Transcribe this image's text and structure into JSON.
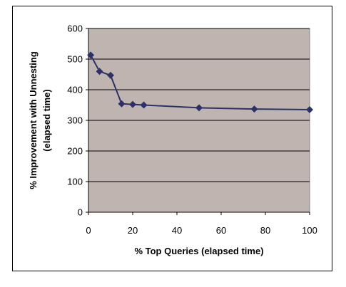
{
  "chart_data": {
    "type": "line",
    "title": "",
    "xlabel": "% Top Queries (elapsed time)",
    "ylabel_line1": "% Improvement with Unnesting",
    "ylabel_line2": "(elapsed time)",
    "xlim": [
      0,
      100
    ],
    "ylim": [
      0,
      600
    ],
    "xticks": [
      0,
      20,
      40,
      60,
      80,
      100
    ],
    "yticks": [
      0,
      100,
      200,
      300,
      400,
      500,
      600
    ],
    "grid": "horizontal",
    "legend": "none",
    "colors": {
      "plot_bg": "#c0b4b0",
      "series": "#2c3268",
      "grid": "#000000"
    },
    "series": [
      {
        "marker": "diamond",
        "x": [
          1,
          5,
          10,
          15,
          20,
          25,
          50,
          75,
          100
        ],
        "y": [
          513,
          460,
          447,
          354,
          352,
          350,
          341,
          337,
          335
        ]
      }
    ]
  }
}
